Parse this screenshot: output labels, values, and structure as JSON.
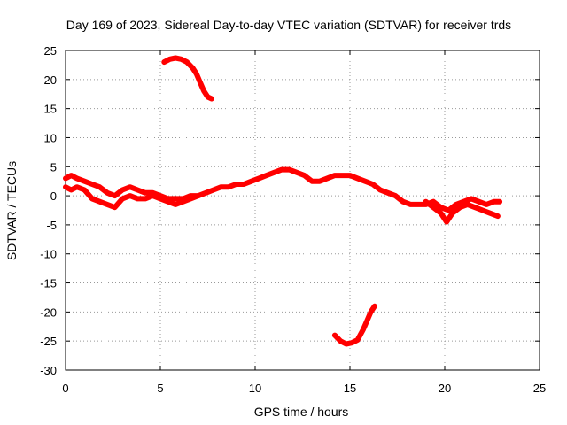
{
  "chart_data": {
    "type": "line",
    "title": "Day 169 of 2023, Sidereal Day-to-day VTEC variation (SDTVAR) for receiver trds",
    "xlabel": "GPS time / hours",
    "ylabel": "SDTVAR / TECUs",
    "xlim": [
      0,
      25
    ],
    "ylim": [
      -30,
      25
    ],
    "xticks": [
      0,
      5,
      10,
      15,
      20,
      25
    ],
    "yticks": [
      -30,
      -25,
      -20,
      -15,
      -10,
      -5,
      0,
      5,
      10,
      15,
      20,
      25
    ],
    "grid": true,
    "series_color": "#ff0000",
    "series": [
      {
        "name": "main",
        "x": [
          0.0,
          0.3,
          0.6,
          1.0,
          1.4,
          1.8,
          2.2,
          2.6,
          3.0,
          3.4,
          3.8,
          4.2,
          4.6,
          5.0,
          5.4,
          5.8,
          6.2,
          6.6,
          7.0,
          7.4,
          7.8,
          8.2,
          8.6,
          9.0,
          9.4,
          9.8,
          10.2,
          10.6,
          11.0,
          11.4,
          11.8,
          12.2,
          12.6,
          13.0,
          13.4,
          13.8,
          14.2,
          14.6,
          15.0,
          15.4,
          15.8,
          16.2,
          16.6,
          17.0,
          17.4,
          17.8,
          18.2,
          18.6,
          19.0,
          19.4,
          19.8,
          20.2,
          20.6,
          21.0,
          21.4,
          21.8,
          22.2,
          22.6,
          22.9
        ],
        "y": [
          3.0,
          3.5,
          3.0,
          2.5,
          2.0,
          1.5,
          0.5,
          0.0,
          1.0,
          1.5,
          1.0,
          0.5,
          0.5,
          0.0,
          -0.5,
          -0.5,
          -0.5,
          0.0,
          0.0,
          0.5,
          1.0,
          1.5,
          1.5,
          2.0,
          2.0,
          2.5,
          3.0,
          3.5,
          4.0,
          4.5,
          4.5,
          4.0,
          3.5,
          2.5,
          2.5,
          3.0,
          3.5,
          3.5,
          3.5,
          3.0,
          2.5,
          2.0,
          1.0,
          0.5,
          0.0,
          -1.0,
          -1.5,
          -1.5,
          -1.5,
          -1.0,
          -2.0,
          -2.5,
          -1.5,
          -1.0,
          -0.5,
          -1.0,
          -1.5,
          -1.0,
          -1.0
        ]
      },
      {
        "name": "main-lower",
        "x": [
          0.0,
          0.3,
          0.6,
          1.0,
          1.4,
          1.8,
          2.2,
          2.6,
          3.0,
          3.4,
          3.8,
          4.2,
          4.6,
          5.0,
          5.4,
          5.8,
          6.2,
          6.6,
          7.0
        ],
        "y": [
          1.5,
          1.0,
          1.5,
          1.0,
          -0.5,
          -1.0,
          -1.5,
          -2.0,
          -0.5,
          0.0,
          -0.5,
          -0.5,
          0.0,
          -0.5,
          -1.0,
          -1.5,
          -1.0,
          -0.5,
          0.0
        ]
      },
      {
        "name": "main-lower-2",
        "x": [
          19.0,
          19.4,
          19.8,
          20.1,
          20.4,
          20.8,
          21.2,
          21.6,
          22.0,
          22.4,
          22.8
        ],
        "y": [
          -1.0,
          -2.0,
          -3.0,
          -4.5,
          -3.0,
          -2.0,
          -1.5,
          -2.0,
          -2.5,
          -3.0,
          -3.5
        ]
      },
      {
        "name": "upper-arc",
        "x": [
          5.2,
          5.5,
          5.8,
          6.1,
          6.4,
          6.7,
          6.9,
          7.1,
          7.3,
          7.5,
          7.7
        ],
        "y": [
          23.0,
          23.5,
          23.7,
          23.5,
          23.0,
          22.0,
          21.0,
          19.5,
          18.0,
          17.0,
          16.7
        ]
      },
      {
        "name": "lower-arc",
        "x": [
          14.2,
          14.5,
          14.8,
          15.1,
          15.4,
          15.7,
          15.9,
          16.1,
          16.3
        ],
        "y": [
          -24.0,
          -25.0,
          -25.5,
          -25.3,
          -24.8,
          -23.0,
          -21.5,
          -20.0,
          -19.0
        ]
      }
    ]
  }
}
